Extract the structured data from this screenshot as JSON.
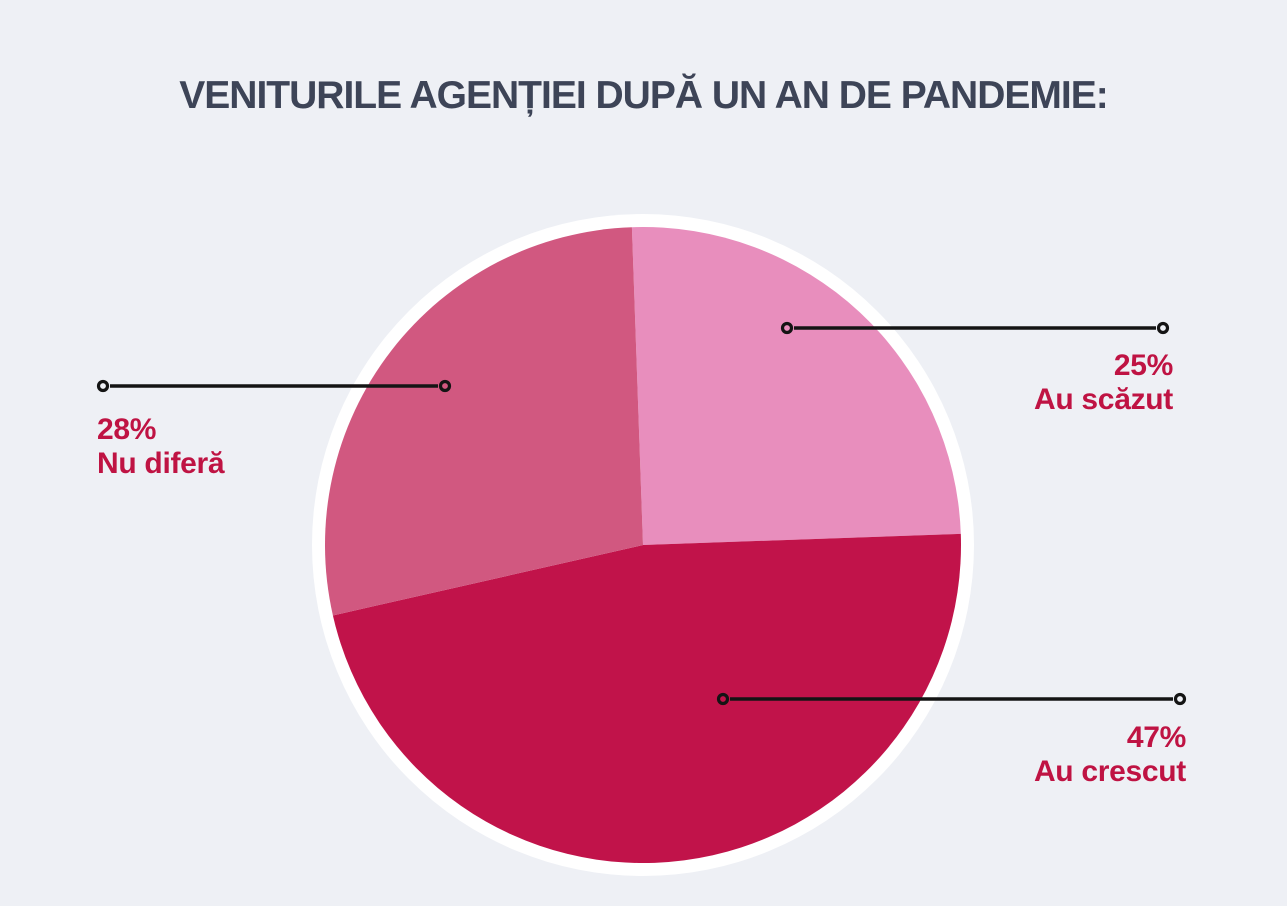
{
  "title": "VENITURILE AGENȚIEI DUPĂ UN AN DE PANDEMIE:",
  "colors": {
    "background": "#eef0f5",
    "title_text": "#3d4457",
    "label_text": "#bf1343",
    "leader_line": "#141414",
    "pie_ring": "#ffffff"
  },
  "chart_data": {
    "type": "pie",
    "title": "VENITURILE AGENȚIEI DUPĂ UN AN DE PANDEMIE:",
    "legend": "none",
    "start_angle_deg": -2,
    "direction": "clockwise",
    "annotations": "each slice has a horizontal black leader line with hollow circle endpoints and a two-line crimson label (percent + category)",
    "slices": [
      {
        "label": "Au scăzut",
        "value": 25,
        "pct_label": "25%",
        "color": "#e88ebd"
      },
      {
        "label": "Au crescut",
        "value": 47,
        "pct_label": "47%",
        "color": "#c1134a"
      },
      {
        "label": "Nu diferă",
        "value": 28,
        "pct_label": "28%",
        "color": "#d15880"
      }
    ]
  }
}
